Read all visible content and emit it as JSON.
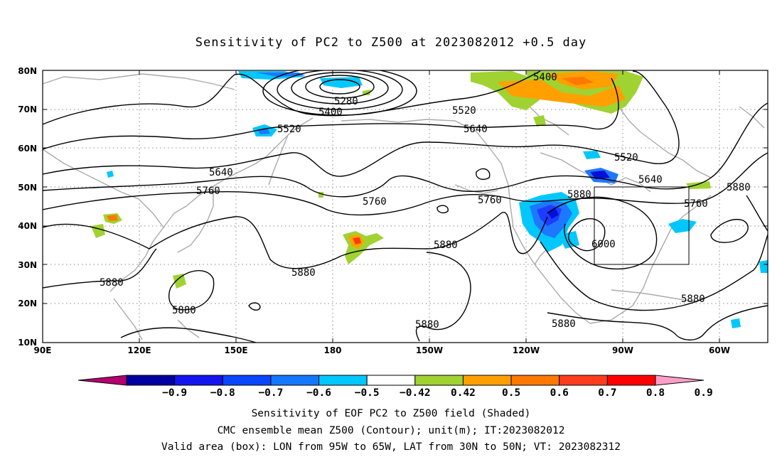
{
  "title": "Sensitivity of PC2 to Z500 at 2023082012 +0.5 day",
  "map": {
    "lat_labels": [
      "80N",
      "70N",
      "60N",
      "50N",
      "40N",
      "30N",
      "20N",
      "10N"
    ],
    "lon_labels": [
      "90E",
      "120E",
      "150E",
      "180",
      "150W",
      "120W",
      "90W",
      "60W"
    ],
    "contour_labels": {
      "c5280": "5280",
      "c5400a": "5400",
      "c5400b": "5400",
      "c5520a": "5520",
      "c5520b": "5520",
      "c5520c": "5520",
      "c5640a": "5640",
      "c5640b": "5640",
      "c5640c": "5640",
      "c5760a": "5760",
      "c5760b": "5760",
      "c5760c": "5760",
      "c5760d": "5760",
      "c5880a": "5880",
      "c5880b": "5880",
      "c5880c": "5880",
      "c5880d": "5880",
      "c5880e": "5880",
      "c5880f": "5880",
      "c5880g": "5880",
      "c5880h": "5880",
      "c5880i": "5880",
      "c6000": "6000"
    },
    "colors": {
      "neg_09": "#0000a0",
      "neg_08": "#0010d8",
      "neg_07": "#1e3cff",
      "neg_06": "#1e78ff",
      "neg_05": "#00c8ff",
      "pos_05": "#a0d232",
      "pos_06": "#ffa000",
      "pos_07": "#ff7800",
      "pos_08": "#ff3c00",
      "pos_09": "#ff0000"
    }
  },
  "colorbar": {
    "labels": [
      "−0.9",
      "−0.8",
      "−0.7",
      "−0.6",
      "−0.5",
      "−0.42",
      "0.42",
      "0.5",
      "0.6",
      "0.7",
      "0.8",
      "0.9"
    ],
    "colors": [
      "#b4006e",
      "#0000a0",
      "#1414f0",
      "#0a46ff",
      "#1478ff",
      "#00c8ff",
      "#ffffff",
      "#a0d232",
      "#ffa000",
      "#ff7800",
      "#ff3c1e",
      "#ff0000",
      "#ff9ec8"
    ]
  },
  "footer": {
    "line1": "Sensitivity of EOF PC2 to Z500 field (Shaded)",
    "line2": "CMC ensemble mean Z500 (Contour); unit(m); IT:2023082012",
    "line3": "Valid area (box): LON from 95W to 65W, LAT from 30N to 50N; VT: 2023082312"
  }
}
